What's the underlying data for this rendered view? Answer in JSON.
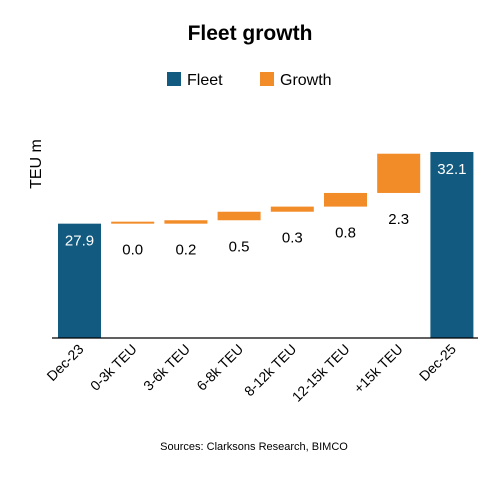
{
  "chart_data": {
    "type": "bar",
    "subtype": "waterfall",
    "title": "Fleet growth",
    "ylabel": "TEU m",
    "xlabel": "",
    "categories": [
      "Dec-23",
      "0-3k TEU",
      "3-6k TEU",
      "6-8k TEU",
      "8-12k TEU",
      "12-15k TEU",
      "+15k TEU",
      "Dec-25"
    ],
    "series": [
      {
        "name": "Fleet",
        "color": "#125a7f",
        "values": [
          27.9,
          null,
          null,
          null,
          null,
          null,
          null,
          32.1
        ]
      },
      {
        "name": "Growth",
        "color": "#f28c28",
        "values": [
          null,
          0.0,
          0.2,
          0.5,
          0.3,
          0.8,
          2.3,
          null
        ]
      }
    ],
    "data_labels": [
      "27.9",
      "0.0",
      "0.2",
      "0.5",
      "0.3",
      "0.8",
      "2.3",
      "32.1"
    ],
    "ylim": [
      21.2,
      32.1
    ],
    "grid": false,
    "legend": "top",
    "source": "Sources: Clarksons Research, BIMCO"
  }
}
